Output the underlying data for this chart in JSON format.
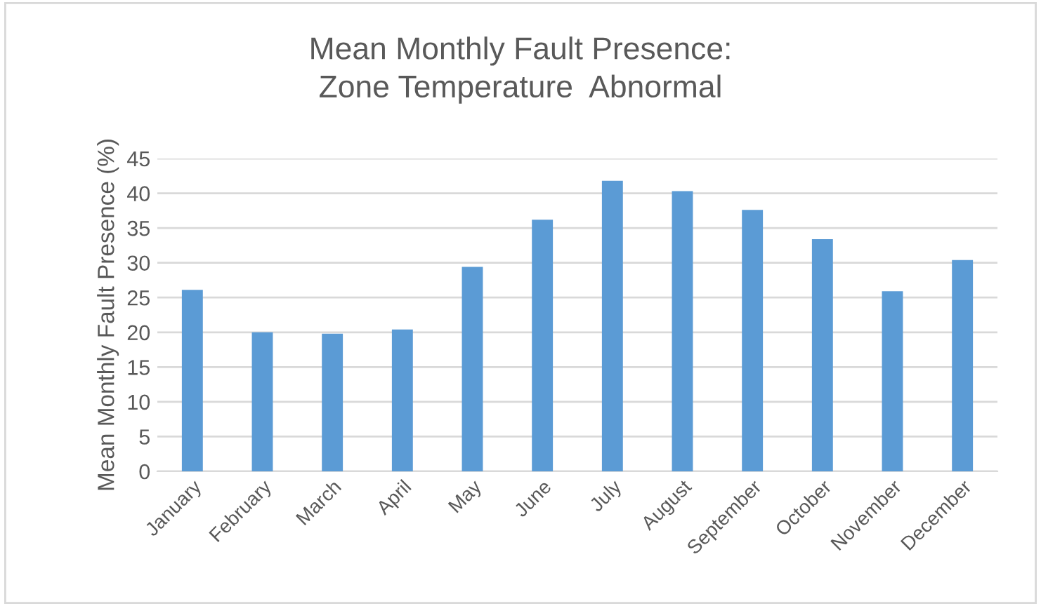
{
  "chart_data": {
    "type": "bar",
    "title": "Mean Monthly Fault Presence:\nZone Temperature  Abnormal",
    "ylabel": "Mean Monthly Fault Presence (%)",
    "categories": [
      "January",
      "February",
      "March",
      "April",
      "May",
      "June",
      "July",
      "August",
      "September",
      "October",
      "November",
      "December"
    ],
    "values": [
      26.1,
      20.0,
      19.8,
      20.4,
      29.4,
      36.2,
      41.8,
      40.3,
      37.6,
      33.4,
      25.9,
      30.4
    ],
    "color": "#5b9bd5",
    "ylim": [
      0,
      45
    ],
    "yticks": [
      0,
      5,
      10,
      15,
      20,
      25,
      30,
      35,
      40,
      45
    ],
    "grid": "y"
  }
}
